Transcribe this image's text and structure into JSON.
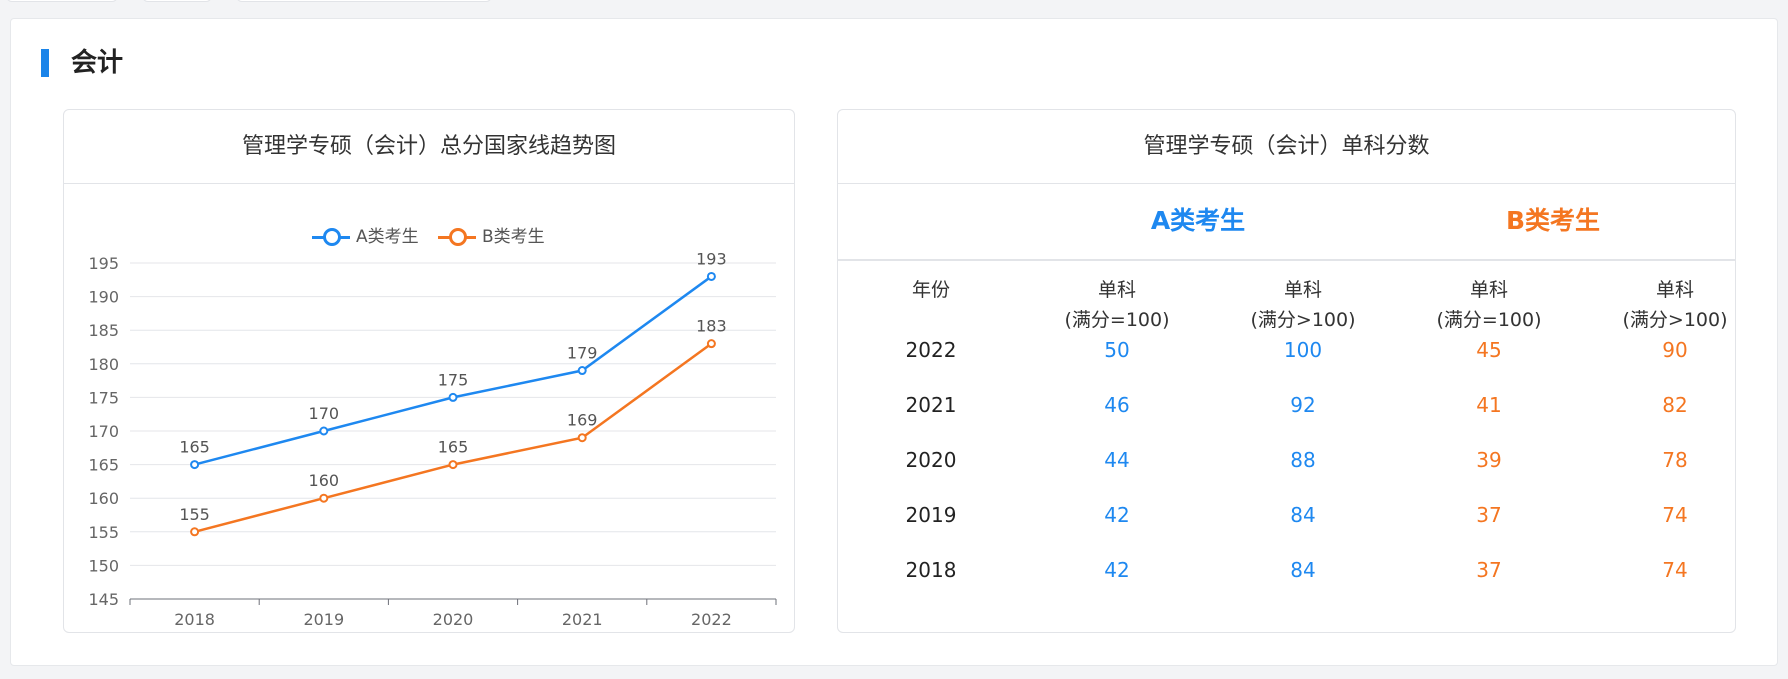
{
  "section": {
    "title": "会计"
  },
  "colors": {
    "a": "#1e88f0",
    "b": "#f47621",
    "accent": "#1a84e9"
  },
  "left_card": {
    "title": "管理学专硕（会计）总分国家线趋势图"
  },
  "chart_data": {
    "type": "line",
    "title": "管理学专硕（会计）总分国家线趋势图",
    "x": [
      "2018",
      "2019",
      "2020",
      "2021",
      "2022"
    ],
    "series": [
      {
        "name": "A类考生",
        "color": "#1e88f0",
        "values": [
          165,
          170,
          175,
          179,
          193
        ]
      },
      {
        "name": "B类考生",
        "color": "#f47621",
        "values": [
          155,
          160,
          165,
          169,
          183
        ]
      }
    ],
    "ylim": [
      145,
      195
    ],
    "yticks": [
      145,
      150,
      155,
      160,
      165,
      170,
      175,
      180,
      185,
      190,
      195
    ],
    "legend": "top-center",
    "grid": true,
    "data_labels": true
  },
  "right_card": {
    "title": "管理学专硕（会计）单科分数",
    "group_a": "A类考生",
    "group_b": "B类考生",
    "col_year": "年份",
    "col_single": "单科",
    "col_full_100": "(满分=100)",
    "col_full_gt100": "(满分>100)",
    "rows": [
      {
        "year": "2022",
        "a1": "50",
        "a2": "100",
        "b1": "45",
        "b2": "90"
      },
      {
        "year": "2021",
        "a1": "46",
        "a2": "92",
        "b1": "41",
        "b2": "82"
      },
      {
        "year": "2020",
        "a1": "44",
        "a2": "88",
        "b1": "39",
        "b2": "78"
      },
      {
        "year": "2019",
        "a1": "42",
        "a2": "84",
        "b1": "37",
        "b2": "74"
      },
      {
        "year": "2018",
        "a1": "42",
        "a2": "84",
        "b1": "37",
        "b2": "74"
      }
    ]
  }
}
